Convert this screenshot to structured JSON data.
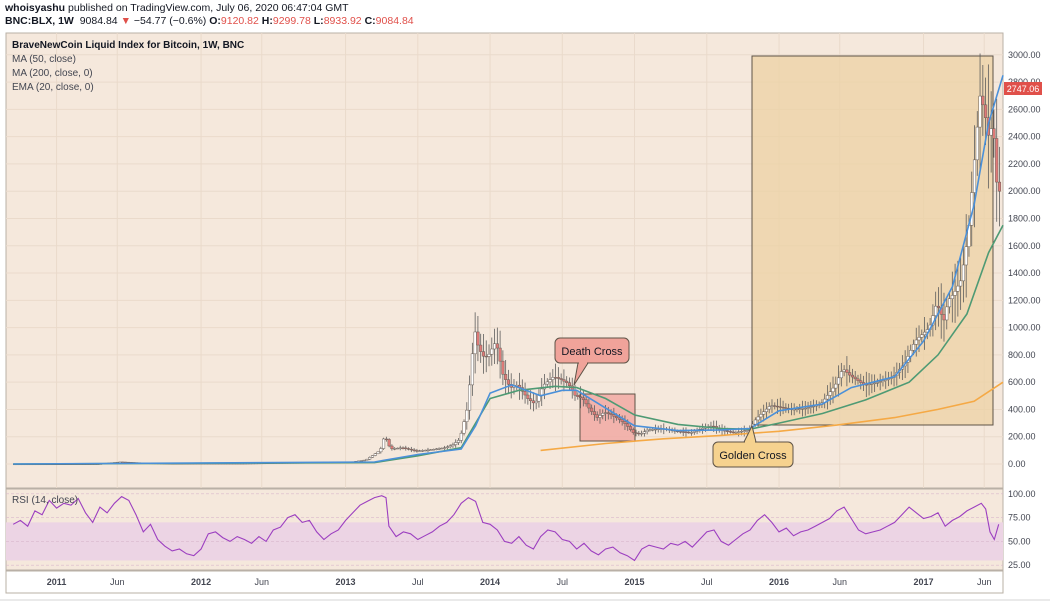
{
  "header": {
    "author": "whoisyashu",
    "published": " published on TradingView.com, July 06, 2020 06:47:04 GMT",
    "symbol": "BNC:BLX, 1W",
    "price": "9084.84",
    "change": "−54.77 (−0.6%)",
    "o_label": "O:",
    "o_value": "9120.82",
    "h_label": "H:",
    "h_value": "9299.78",
    "l_label": "L:",
    "l_value": "8933.92",
    "c_label": "C:",
    "c_value": "9084.84"
  },
  "legend": {
    "title": "BraveNewCoin Liquid Index for Bitcoin, 1W, BNC",
    "items": [
      "MA (50, close)",
      "MA (200, close, 0)",
      "EMA (20, close, 0)"
    ]
  },
  "annotations": {
    "death_cross": "Death Cross",
    "golden_cross": "Golden Cross"
  },
  "price_tag": "2747.06",
  "rsi": {
    "label": "RSI (14, close)",
    "ticks": [
      "100.00",
      "75.00",
      "50.00",
      "25.00"
    ]
  },
  "colors": {
    "background": "#f5e8dc",
    "candle_up": "#ffffff",
    "candle_down": "#e07a78",
    "ma50": "#4e9a74",
    "ma200": "#f5a945",
    "ema20": "#4a90d9",
    "rsi_line": "#9c3fc0",
    "rsi_band": "#ecd4e4",
    "death_box": "#f1a9a3",
    "golden_box": "#ecd2a4",
    "price_tag": "#e0504a"
  },
  "chart_data": {
    "type": "candlestick",
    "title": "BraveNewCoin Liquid Index for Bitcoin, 1W, BNC",
    "ylim": [
      -100,
      3050
    ],
    "y_ticks": [
      0,
      200,
      400,
      600,
      800,
      1000,
      1200,
      1400,
      1600,
      1800,
      2000,
      2200,
      2400,
      2600,
      2800,
      3000
    ],
    "y_tick_labels": [
      "0.00",
      "200.00",
      "400.00",
      "600.00",
      "800.00",
      "1000.00",
      "1200.00",
      "1400.00",
      "1600.00",
      "1800.00",
      "2000.00",
      "2200.00",
      "2400.00",
      "2600.00",
      "2800.00",
      "3000.00"
    ],
    "x_ticks": [
      {
        "t": 2011.0,
        "label": "2011"
      },
      {
        "t": 2011.42,
        "label": "Jun"
      },
      {
        "t": 2012.0,
        "label": "2012"
      },
      {
        "t": 2012.42,
        "label": "Jun"
      },
      {
        "t": 2013.0,
        "label": "2013"
      },
      {
        "t": 2013.5,
        "label": "Jul"
      },
      {
        "t": 2014.0,
        "label": "2014"
      },
      {
        "t": 2014.5,
        "label": "Jul"
      },
      {
        "t": 2015.0,
        "label": "2015"
      },
      {
        "t": 2015.5,
        "label": "Jul"
      },
      {
        "t": 2016.0,
        "label": "2016"
      },
      {
        "t": 2016.42,
        "label": "Jun"
      },
      {
        "t": 2017.0,
        "label": "2017"
      },
      {
        "t": 2017.42,
        "label": "Jun"
      }
    ],
    "xlim": [
      2010.65,
      2017.55
    ],
    "price": [
      [
        2010.7,
        0.1
      ],
      [
        2011.0,
        0.3
      ],
      [
        2011.3,
        1
      ],
      [
        2011.45,
        15
      ],
      [
        2011.6,
        8
      ],
      [
        2011.8,
        4
      ],
      [
        2012.0,
        5
      ],
      [
        2012.3,
        5
      ],
      [
        2012.6,
        10
      ],
      [
        2012.9,
        13
      ],
      [
        2013.05,
        15
      ],
      [
        2013.15,
        30
      ],
      [
        2013.25,
        100
      ],
      [
        2013.28,
        210
      ],
      [
        2013.32,
        110
      ],
      [
        2013.4,
        120
      ],
      [
        2013.5,
        95
      ],
      [
        2013.6,
        105
      ],
      [
        2013.7,
        120
      ],
      [
        2013.75,
        140
      ],
      [
        2013.8,
        180
      ],
      [
        2013.85,
        400
      ],
      [
        2013.88,
        700
      ],
      [
        2013.9,
        1000
      ],
      [
        2013.93,
        850
      ],
      [
        2013.97,
        780
      ],
      [
        2014.0,
        800
      ],
      [
        2014.05,
        900
      ],
      [
        2014.1,
        650
      ],
      [
        2014.15,
        560
      ],
      [
        2014.2,
        580
      ],
      [
        2014.27,
        480
      ],
      [
        2014.32,
        440
      ],
      [
        2014.38,
        580
      ],
      [
        2014.45,
        640
      ],
      [
        2014.5,
        620
      ],
      [
        2014.55,
        590
      ],
      [
        2014.6,
        500
      ],
      [
        2014.65,
        480
      ],
      [
        2014.7,
        400
      ],
      [
        2014.75,
        340
      ],
      [
        2014.8,
        380
      ],
      [
        2014.85,
        360
      ],
      [
        2014.9,
        330
      ],
      [
        2014.95,
        290
      ],
      [
        2015.0,
        230
      ],
      [
        2015.05,
        220
      ],
      [
        2015.1,
        250
      ],
      [
        2015.2,
        260
      ],
      [
        2015.3,
        240
      ],
      [
        2015.4,
        230
      ],
      [
        2015.5,
        270
      ],
      [
        2015.55,
        280
      ],
      [
        2015.6,
        250
      ],
      [
        2015.7,
        230
      ],
      [
        2015.8,
        250
      ],
      [
        2015.85,
        330
      ],
      [
        2015.9,
        380
      ],
      [
        2015.95,
        430
      ],
      [
        2016.0,
        420
      ],
      [
        2016.1,
        400
      ],
      [
        2016.2,
        410
      ],
      [
        2016.3,
        440
      ],
      [
        2016.4,
        580
      ],
      [
        2016.45,
        700
      ],
      [
        2016.5,
        650
      ],
      [
        2016.6,
        580
      ],
      [
        2016.7,
        600
      ],
      [
        2016.8,
        640
      ],
      [
        2016.88,
        740
      ],
      [
        2016.95,
        900
      ],
      [
        2017.0,
        950
      ],
      [
        2017.05,
        1000
      ],
      [
        2017.1,
        1180
      ],
      [
        2017.15,
        1050
      ],
      [
        2017.18,
        1200
      ],
      [
        2017.22,
        1250
      ],
      [
        2017.27,
        1350
      ],
      [
        2017.32,
        1700
      ],
      [
        2017.36,
        2200
      ],
      [
        2017.4,
        2700
      ],
      [
        2017.43,
        2600
      ],
      [
        2017.46,
        2400
      ],
      [
        2017.49,
        2500
      ],
      [
        2017.52,
        2000
      ]
    ],
    "series": [
      {
        "name": "MA (50, close)",
        "values": [
          [
            2010.7,
            0
          ],
          [
            2013.2,
            10
          ],
          [
            2013.5,
            60
          ],
          [
            2013.8,
            120
          ],
          [
            2013.9,
            300
          ],
          [
            2014.0,
            480
          ],
          [
            2014.2,
            540
          ],
          [
            2014.45,
            570
          ],
          [
            2014.6,
            560
          ],
          [
            2014.8,
            480
          ],
          [
            2015.0,
            360
          ],
          [
            2015.3,
            290
          ],
          [
            2015.6,
            260
          ],
          [
            2015.8,
            255
          ],
          [
            2016.0,
            300
          ],
          [
            2016.3,
            370
          ],
          [
            2016.6,
            470
          ],
          [
            2016.9,
            600
          ],
          [
            2017.1,
            800
          ],
          [
            2017.3,
            1100
          ],
          [
            2017.45,
            1550
          ],
          [
            2017.55,
            1750
          ]
        ]
      },
      {
        "name": "MA (200, close, 0)",
        "values": [
          [
            2014.35,
            100
          ],
          [
            2014.8,
            150
          ],
          [
            2015.2,
            185
          ],
          [
            2015.6,
            210
          ],
          [
            2016.0,
            240
          ],
          [
            2016.4,
            285
          ],
          [
            2016.8,
            340
          ],
          [
            2017.1,
            400
          ],
          [
            2017.35,
            460
          ],
          [
            2017.55,
            600
          ]
        ]
      },
      {
        "name": "EMA (20, close, 0)",
        "values": [
          [
            2010.7,
            0
          ],
          [
            2013.2,
            15
          ],
          [
            2013.5,
            70
          ],
          [
            2013.8,
            110
          ],
          [
            2013.9,
            280
          ],
          [
            2014.0,
            520
          ],
          [
            2014.15,
            580
          ],
          [
            2014.35,
            500
          ],
          [
            2014.5,
            540
          ],
          [
            2014.6,
            540
          ],
          [
            2014.8,
            410
          ],
          [
            2015.0,
            280
          ],
          [
            2015.3,
            245
          ],
          [
            2015.6,
            250
          ],
          [
            2015.8,
            260
          ],
          [
            2016.0,
            390
          ],
          [
            2016.3,
            440
          ],
          [
            2016.5,
            560
          ],
          [
            2016.8,
            640
          ],
          [
            2017.0,
            900
          ],
          [
            2017.2,
            1300
          ],
          [
            2017.35,
            1900
          ],
          [
            2017.45,
            2500
          ],
          [
            2017.55,
            2850
          ]
        ]
      }
    ],
    "rsi_ylim": [
      20,
      105
    ],
    "rsi_band": [
      30,
      70
    ],
    "rsi": [
      [
        2010.7,
        68
      ],
      [
        2010.75,
        72
      ],
      [
        2010.8,
        66
      ],
      [
        2010.85,
        82
      ],
      [
        2010.9,
        78
      ],
      [
        2010.95,
        93
      ],
      [
        2011.0,
        85
      ],
      [
        2011.05,
        90
      ],
      [
        2011.1,
        88
      ],
      [
        2011.15,
        95
      ],
      [
        2011.2,
        80
      ],
      [
        2011.25,
        70
      ],
      [
        2011.3,
        86
      ],
      [
        2011.35,
        80
      ],
      [
        2011.4,
        90
      ],
      [
        2011.45,
        97
      ],
      [
        2011.5,
        93
      ],
      [
        2011.55,
        78
      ],
      [
        2011.6,
        60
      ],
      [
        2011.65,
        68
      ],
      [
        2011.7,
        52
      ],
      [
        2011.75,
        45
      ],
      [
        2011.8,
        40
      ],
      [
        2011.85,
        42
      ],
      [
        2011.9,
        37
      ],
      [
        2011.95,
        35
      ],
      [
        2012.0,
        42
      ],
      [
        2012.05,
        58
      ],
      [
        2012.1,
        60
      ],
      [
        2012.15,
        54
      ],
      [
        2012.2,
        50
      ],
      [
        2012.25,
        55
      ],
      [
        2012.3,
        52
      ],
      [
        2012.35,
        48
      ],
      [
        2012.4,
        55
      ],
      [
        2012.45,
        50
      ],
      [
        2012.5,
        62
      ],
      [
        2012.55,
        65
      ],
      [
        2012.6,
        75
      ],
      [
        2012.65,
        78
      ],
      [
        2012.7,
        70
      ],
      [
        2012.75,
        72
      ],
      [
        2012.8,
        60
      ],
      [
        2012.85,
        52
      ],
      [
        2012.9,
        58
      ],
      [
        2012.95,
        62
      ],
      [
        2013.0,
        72
      ],
      [
        2013.05,
        80
      ],
      [
        2013.1,
        88
      ],
      [
        2013.15,
        92
      ],
      [
        2013.2,
        96
      ],
      [
        2013.25,
        98
      ],
      [
        2013.28,
        96
      ],
      [
        2013.3,
        66
      ],
      [
        2013.35,
        55
      ],
      [
        2013.4,
        60
      ],
      [
        2013.45,
        58
      ],
      [
        2013.5,
        52
      ],
      [
        2013.55,
        56
      ],
      [
        2013.6,
        60
      ],
      [
        2013.65,
        66
      ],
      [
        2013.7,
        70
      ],
      [
        2013.75,
        78
      ],
      [
        2013.8,
        90
      ],
      [
        2013.85,
        96
      ],
      [
        2013.9,
        92
      ],
      [
        2013.95,
        70
      ],
      [
        2014.0,
        68
      ],
      [
        2014.05,
        62
      ],
      [
        2014.1,
        50
      ],
      [
        2014.15,
        48
      ],
      [
        2014.2,
        55
      ],
      [
        2014.25,
        46
      ],
      [
        2014.3,
        42
      ],
      [
        2014.35,
        55
      ],
      [
        2014.4,
        62
      ],
      [
        2014.45,
        60
      ],
      [
        2014.5,
        52
      ],
      [
        2014.55,
        50
      ],
      [
        2014.6,
        42
      ],
      [
        2014.65,
        48
      ],
      [
        2014.7,
        40
      ],
      [
        2014.75,
        36
      ],
      [
        2014.8,
        42
      ],
      [
        2014.85,
        44
      ],
      [
        2014.9,
        38
      ],
      [
        2014.95,
        35
      ],
      [
        2015.0,
        30
      ],
      [
        2015.05,
        42
      ],
      [
        2015.1,
        46
      ],
      [
        2015.15,
        44
      ],
      [
        2015.2,
        42
      ],
      [
        2015.25,
        48
      ],
      [
        2015.3,
        46
      ],
      [
        2015.35,
        50
      ],
      [
        2015.4,
        44
      ],
      [
        2015.45,
        52
      ],
      [
        2015.5,
        60
      ],
      [
        2015.55,
        62
      ],
      [
        2015.6,
        50
      ],
      [
        2015.65,
        46
      ],
      [
        2015.7,
        52
      ],
      [
        2015.75,
        58
      ],
      [
        2015.8,
        62
      ],
      [
        2015.85,
        72
      ],
      [
        2015.9,
        78
      ],
      [
        2015.95,
        70
      ],
      [
        2016.0,
        60
      ],
      [
        2016.05,
        64
      ],
      [
        2016.1,
        56
      ],
      [
        2016.15,
        60
      ],
      [
        2016.2,
        62
      ],
      [
        2016.25,
        66
      ],
      [
        2016.3,
        70
      ],
      [
        2016.35,
        74
      ],
      [
        2016.4,
        82
      ],
      [
        2016.45,
        86
      ],
      [
        2016.5,
        74
      ],
      [
        2016.55,
        62
      ],
      [
        2016.6,
        58
      ],
      [
        2016.65,
        60
      ],
      [
        2016.7,
        62
      ],
      [
        2016.75,
        66
      ],
      [
        2016.8,
        70
      ],
      [
        2016.85,
        78
      ],
      [
        2016.9,
        86
      ],
      [
        2016.95,
        80
      ],
      [
        2017.0,
        74
      ],
      [
        2017.05,
        76
      ],
      [
        2017.1,
        80
      ],
      [
        2017.15,
        66
      ],
      [
        2017.2,
        72
      ],
      [
        2017.25,
        76
      ],
      [
        2017.3,
        82
      ],
      [
        2017.35,
        86
      ],
      [
        2017.4,
        90
      ],
      [
        2017.43,
        84
      ],
      [
        2017.46,
        60
      ],
      [
        2017.49,
        52
      ],
      [
        2017.52,
        68
      ]
    ]
  }
}
